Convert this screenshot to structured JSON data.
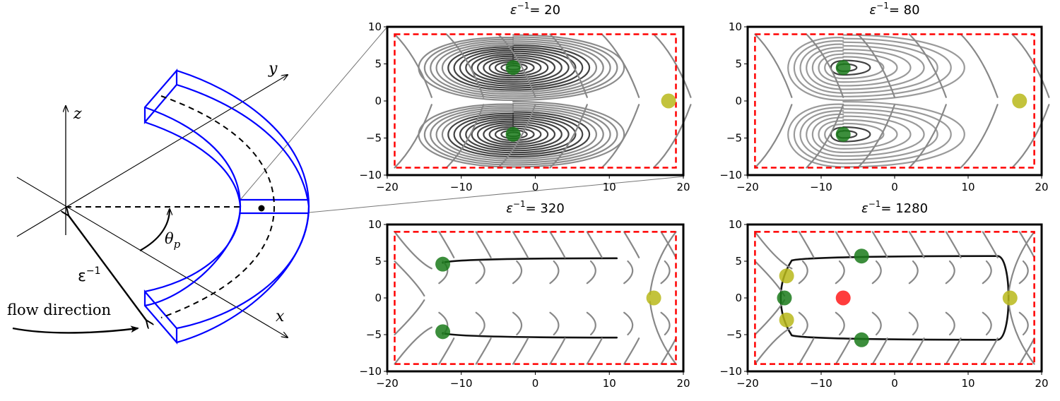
{
  "diagram": {
    "axis_x": "x",
    "axis_y": "y",
    "axis_z": "z",
    "angle_label": "θ",
    "angle_sub": "p",
    "radius_label": "ε",
    "radius_sup": "−1",
    "flow_label": "flow direction",
    "colors": {
      "channel": "#0000ff",
      "axes": "#000000"
    }
  },
  "chart_data": [
    {
      "type": "streamplot",
      "title_prefix": "ε",
      "title_sup": "−1",
      "title_value": "= 20",
      "xlim": [
        -20,
        20
      ],
      "ylim": [
        -10,
        10
      ],
      "xticks": [
        "−20",
        "−10",
        "0",
        "10",
        "20"
      ],
      "yticks": [
        "10",
        "5",
        "0",
        "−5",
        "−10"
      ],
      "boundary_box": {
        "x": [
          -19,
          19
        ],
        "y": [
          -9,
          9
        ]
      },
      "fixed_points": [
        {
          "x": -3,
          "y": 4.5,
          "kind": "stable",
          "color": "#1a7a1a"
        },
        {
          "x": -3,
          "y": -4.5,
          "kind": "stable",
          "color": "#1a7a1a"
        },
        {
          "x": 18,
          "y": 0,
          "kind": "saddle",
          "color": "#b8b81a"
        }
      ]
    },
    {
      "type": "streamplot",
      "title_prefix": "ε",
      "title_sup": "−1",
      "title_value": "= 80",
      "xlim": [
        -20,
        20
      ],
      "ylim": [
        -10,
        10
      ],
      "xticks": [
        "−20",
        "−10",
        "0",
        "10",
        "20"
      ],
      "yticks": [
        "10",
        "5",
        "0",
        "−5",
        "−10"
      ],
      "boundary_box": {
        "x": [
          -19,
          19
        ],
        "y": [
          -9,
          9
        ]
      },
      "fixed_points": [
        {
          "x": -7,
          "y": 4.5,
          "kind": "stable",
          "color": "#1a7a1a"
        },
        {
          "x": -7,
          "y": -4.5,
          "kind": "stable",
          "color": "#1a7a1a"
        },
        {
          "x": 17,
          "y": 0,
          "kind": "saddle",
          "color": "#b8b81a"
        }
      ]
    },
    {
      "type": "streamplot",
      "title_prefix": "ε",
      "title_sup": "−1",
      "title_value": "= 320",
      "xlim": [
        -20,
        20
      ],
      "ylim": [
        -10,
        10
      ],
      "xticks": [
        "−20",
        "−10",
        "0",
        "10",
        "20"
      ],
      "yticks": [
        "10",
        "5",
        "0",
        "−5",
        "−10"
      ],
      "boundary_box": {
        "x": [
          -19,
          19
        ],
        "y": [
          -9,
          9
        ]
      },
      "fixed_points": [
        {
          "x": -12.5,
          "y": 4.6,
          "kind": "stable",
          "color": "#1a7a1a"
        },
        {
          "x": -12.5,
          "y": -4.6,
          "kind": "stable",
          "color": "#1a7a1a"
        },
        {
          "x": 16,
          "y": 0,
          "kind": "saddle",
          "color": "#b8b81a"
        }
      ]
    },
    {
      "type": "streamplot",
      "title_prefix": "ε",
      "title_sup": "−1",
      "title_value": "= 1280",
      "xlim": [
        -20,
        20
      ],
      "ylim": [
        -10,
        10
      ],
      "xticks": [
        "−20",
        "−10",
        "0",
        "10",
        "20"
      ],
      "yticks": [
        "10",
        "5",
        "0",
        "−5",
        "−10"
      ],
      "boundary_box": {
        "x": [
          -19,
          19
        ],
        "y": [
          -9,
          9
        ]
      },
      "fixed_points": [
        {
          "x": -4.5,
          "y": 5.7,
          "kind": "stable",
          "color": "#1a7a1a"
        },
        {
          "x": -4.5,
          "y": -5.7,
          "kind": "stable",
          "color": "#1a7a1a"
        },
        {
          "x": -15,
          "y": 0,
          "kind": "stable",
          "color": "#1a7a1a"
        },
        {
          "x": -14.7,
          "y": 3,
          "kind": "saddle",
          "color": "#b8b81a"
        },
        {
          "x": -14.7,
          "y": -3,
          "kind": "saddle",
          "color": "#b8b81a"
        },
        {
          "x": 15.7,
          "y": 0,
          "kind": "saddle",
          "color": "#b8b81a"
        },
        {
          "x": -7,
          "y": 0,
          "kind": "unstable",
          "color": "#ff1a1a"
        }
      ]
    }
  ]
}
